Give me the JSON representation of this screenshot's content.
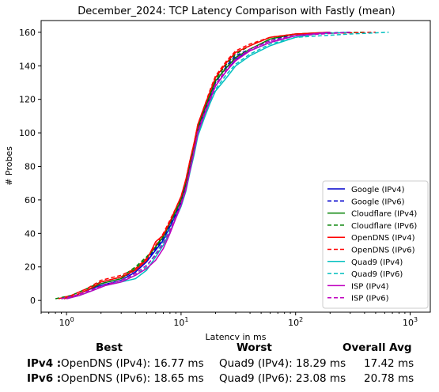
{
  "chart_data": {
    "type": "line",
    "title": "December_2024: TCP Latency Comparison with Fastly (mean)",
    "xlabel": "Latency in ms",
    "ylabel": "# Probes",
    "xscale": "log",
    "xlim": [
      0.6,
      1500
    ],
    "ylim": [
      -7,
      167
    ],
    "xticks": [
      1,
      10,
      100,
      1000
    ],
    "xtick_labels": [
      "10^0",
      "10^1",
      "10^2",
      "10^3"
    ],
    "yticks": [
      0,
      20,
      40,
      60,
      80,
      100,
      120,
      140,
      160
    ],
    "grid": false,
    "legend_position": "lower-right",
    "series": [
      {
        "name": "Google (IPv4)",
        "color": "#0000cc",
        "dash": "solid",
        "points": [
          [
            0.95,
            1
          ],
          [
            1.2,
            3
          ],
          [
            1.5,
            6
          ],
          [
            2,
            9
          ],
          [
            3,
            12
          ],
          [
            4,
            17
          ],
          [
            5,
            23
          ],
          [
            6,
            30
          ],
          [
            7,
            36
          ],
          [
            8,
            44
          ],
          [
            9,
            51
          ],
          [
            10,
            58
          ],
          [
            11,
            68
          ],
          [
            12,
            80
          ],
          [
            13,
            90
          ],
          [
            14,
            101
          ],
          [
            16,
            112
          ],
          [
            18,
            121
          ],
          [
            20,
            128
          ],
          [
            25,
            137
          ],
          [
            30,
            144
          ],
          [
            40,
            149
          ],
          [
            60,
            154
          ],
          [
            100,
            158
          ],
          [
            200,
            160
          ]
        ]
      },
      {
        "name": "Google (IPv6)",
        "color": "#0000cc",
        "dash": "dashed",
        "points": [
          [
            0.9,
            1
          ],
          [
            1.2,
            3
          ],
          [
            1.5,
            6
          ],
          [
            2,
            10
          ],
          [
            3,
            13
          ],
          [
            4,
            18
          ],
          [
            5,
            24
          ],
          [
            6,
            31
          ],
          [
            7,
            37
          ],
          [
            8,
            45
          ],
          [
            9,
            52
          ],
          [
            10,
            59
          ],
          [
            11,
            69
          ],
          [
            12,
            81
          ],
          [
            13,
            91
          ],
          [
            14,
            102
          ],
          [
            16,
            113
          ],
          [
            18,
            122
          ],
          [
            20,
            130
          ],
          [
            25,
            140
          ],
          [
            30,
            146
          ],
          [
            40,
            150
          ],
          [
            60,
            155
          ],
          [
            100,
            159
          ],
          [
            300,
            160
          ]
        ]
      },
      {
        "name": "Cloudflare (IPv4)",
        "color": "#008000",
        "dash": "solid",
        "points": [
          [
            0.9,
            1
          ],
          [
            1.2,
            3
          ],
          [
            1.5,
            6
          ],
          [
            2,
            10
          ],
          [
            3,
            13
          ],
          [
            4,
            19
          ],
          [
            5,
            25
          ],
          [
            6,
            32
          ],
          [
            7,
            38
          ],
          [
            8,
            46
          ],
          [
            9,
            53
          ],
          [
            10,
            60
          ],
          [
            11,
            70
          ],
          [
            12,
            82
          ],
          [
            13,
            92
          ],
          [
            14,
            103
          ],
          [
            16,
            114
          ],
          [
            18,
            123
          ],
          [
            20,
            131
          ],
          [
            25,
            139
          ],
          [
            30,
            145
          ],
          [
            40,
            150
          ],
          [
            60,
            156
          ],
          [
            100,
            159
          ],
          [
            200,
            160
          ]
        ]
      },
      {
        "name": "Cloudflare (IPv6)",
        "color": "#008000",
        "dash": "dashed",
        "points": [
          [
            0.8,
            1
          ],
          [
            1.1,
            3
          ],
          [
            1.5,
            7
          ],
          [
            2,
            11
          ],
          [
            3,
            14
          ],
          [
            4,
            20
          ],
          [
            5,
            26
          ],
          [
            6,
            32
          ],
          [
            7,
            39
          ],
          [
            8,
            47
          ],
          [
            9,
            54
          ],
          [
            10,
            61
          ],
          [
            11,
            71
          ],
          [
            12,
            83
          ],
          [
            13,
            93
          ],
          [
            14,
            104
          ],
          [
            16,
            115
          ],
          [
            18,
            124
          ],
          [
            20,
            132
          ],
          [
            25,
            141
          ],
          [
            30,
            147
          ],
          [
            40,
            152
          ],
          [
            60,
            157
          ],
          [
            100,
            159
          ],
          [
            400,
            160
          ]
        ]
      },
      {
        "name": "OpenDNS (IPv4)",
        "color": "#ff0000",
        "dash": "solid",
        "points": [
          [
            0.95,
            1
          ],
          [
            1.2,
            3
          ],
          [
            1.6,
            7
          ],
          [
            2,
            11
          ],
          [
            3,
            14
          ],
          [
            4,
            18
          ],
          [
            5,
            24
          ],
          [
            6,
            35
          ],
          [
            7,
            39
          ],
          [
            8,
            47
          ],
          [
            9,
            55
          ],
          [
            10,
            62
          ],
          [
            11,
            72
          ],
          [
            12,
            84
          ],
          [
            13,
            94
          ],
          [
            14,
            105
          ],
          [
            16,
            116
          ],
          [
            18,
            125
          ],
          [
            20,
            133
          ],
          [
            25,
            142
          ],
          [
            30,
            148
          ],
          [
            40,
            152
          ],
          [
            60,
            157
          ],
          [
            100,
            159
          ],
          [
            200,
            160
          ]
        ]
      },
      {
        "name": "OpenDNS (IPv6)",
        "color": "#ff0000",
        "dash": "dashed",
        "points": [
          [
            0.85,
            1
          ],
          [
            1.1,
            3
          ],
          [
            1.5,
            7
          ],
          [
            2,
            12
          ],
          [
            3,
            15
          ],
          [
            4,
            19
          ],
          [
            5,
            25
          ],
          [
            6,
            33
          ],
          [
            7,
            40
          ],
          [
            8,
            48
          ],
          [
            9,
            55
          ],
          [
            10,
            62
          ],
          [
            11,
            72
          ],
          [
            12,
            84
          ],
          [
            13,
            94
          ],
          [
            14,
            105
          ],
          [
            16,
            116
          ],
          [
            18,
            126
          ],
          [
            20,
            134
          ],
          [
            25,
            143
          ],
          [
            30,
            149
          ],
          [
            40,
            153
          ],
          [
            60,
            157
          ],
          [
            100,
            159
          ],
          [
            500,
            160
          ]
        ]
      },
      {
        "name": "Quad9 (IPv4)",
        "color": "#00bfbf",
        "dash": "solid",
        "points": [
          [
            1,
            1
          ],
          [
            1.3,
            3
          ],
          [
            1.7,
            6
          ],
          [
            2.2,
            9
          ],
          [
            3,
            11
          ],
          [
            4,
            13
          ],
          [
            5,
            18
          ],
          [
            6,
            26
          ],
          [
            7,
            33
          ],
          [
            8,
            41
          ],
          [
            9,
            49
          ],
          [
            10,
            56
          ],
          [
            11,
            65
          ],
          [
            12,
            77
          ],
          [
            13,
            87
          ],
          [
            14,
            98
          ],
          [
            16,
            109
          ],
          [
            18,
            118
          ],
          [
            20,
            125
          ],
          [
            25,
            133
          ],
          [
            30,
            140
          ],
          [
            40,
            146
          ],
          [
            60,
            152
          ],
          [
            100,
            157
          ],
          [
            150,
            159
          ],
          [
            300,
            160
          ]
        ]
      },
      {
        "name": "Quad9 (IPv6)",
        "color": "#00bfbf",
        "dash": "dashed",
        "points": [
          [
            0.9,
            1
          ],
          [
            1.2,
            3
          ],
          [
            1.6,
            6
          ],
          [
            2.1,
            9
          ],
          [
            3,
            12
          ],
          [
            4,
            15
          ],
          [
            5,
            20
          ],
          [
            6,
            28
          ],
          [
            7,
            35
          ],
          [
            8,
            43
          ],
          [
            9,
            50
          ],
          [
            10,
            57
          ],
          [
            11,
            66
          ],
          [
            12,
            78
          ],
          [
            13,
            88
          ],
          [
            14,
            99
          ],
          [
            16,
            110
          ],
          [
            18,
            119
          ],
          [
            20,
            126
          ],
          [
            25,
            135
          ],
          [
            30,
            141
          ],
          [
            40,
            147
          ],
          [
            60,
            153
          ],
          [
            100,
            157
          ],
          [
            300,
            159
          ],
          [
            650,
            160
          ]
        ]
      },
      {
        "name": "ISP (IPv4)",
        "color": "#bf00bf",
        "dash": "solid",
        "points": [
          [
            1,
            1
          ],
          [
            1.3,
            3
          ],
          [
            1.7,
            6
          ],
          [
            2.2,
            9
          ],
          [
            3,
            11
          ],
          [
            4,
            15
          ],
          [
            5,
            19
          ],
          [
            6,
            24
          ],
          [
            7,
            31
          ],
          [
            8,
            40
          ],
          [
            9,
            49
          ],
          [
            10,
            57
          ],
          [
            11,
            66
          ],
          [
            12,
            78
          ],
          [
            13,
            89
          ],
          [
            14,
            100
          ],
          [
            16,
            111
          ],
          [
            18,
            120
          ],
          [
            20,
            128
          ],
          [
            25,
            137
          ],
          [
            30,
            143
          ],
          [
            40,
            149
          ],
          [
            60,
            154
          ],
          [
            100,
            158
          ],
          [
            200,
            160
          ]
        ]
      },
      {
        "name": "ISP (IPv6)",
        "color": "#bf00bf",
        "dash": "dashed",
        "points": [
          [
            0.9,
            1
          ],
          [
            1.2,
            3
          ],
          [
            1.6,
            6
          ],
          [
            2.1,
            9
          ],
          [
            3,
            12
          ],
          [
            4,
            16
          ],
          [
            5,
            21
          ],
          [
            6,
            27
          ],
          [
            7,
            34
          ],
          [
            8,
            42
          ],
          [
            9,
            50
          ],
          [
            10,
            58
          ],
          [
            11,
            67
          ],
          [
            12,
            79
          ],
          [
            13,
            90
          ],
          [
            14,
            101
          ],
          [
            16,
            112
          ],
          [
            18,
            121
          ],
          [
            20,
            129
          ],
          [
            25,
            138
          ],
          [
            30,
            144
          ],
          [
            40,
            150
          ],
          [
            60,
            155
          ],
          [
            100,
            158
          ],
          [
            300,
            160
          ]
        ]
      }
    ]
  },
  "summary": {
    "headers": {
      "best": "Best",
      "worst": "Worst",
      "avg": "Overall Avg"
    },
    "rows": [
      {
        "label": "IPv4 :",
        "best": "OpenDNS (IPv4): 16.77 ms",
        "worst": "Quad9 (IPv4): 18.29 ms",
        "avg": "17.42 ms"
      },
      {
        "label": "IPv6 :",
        "best": "OpenDNS (IPv6): 18.65 ms",
        "worst": "Quad9 (IPv6): 23.08 ms",
        "avg": "20.78 ms"
      }
    ]
  }
}
